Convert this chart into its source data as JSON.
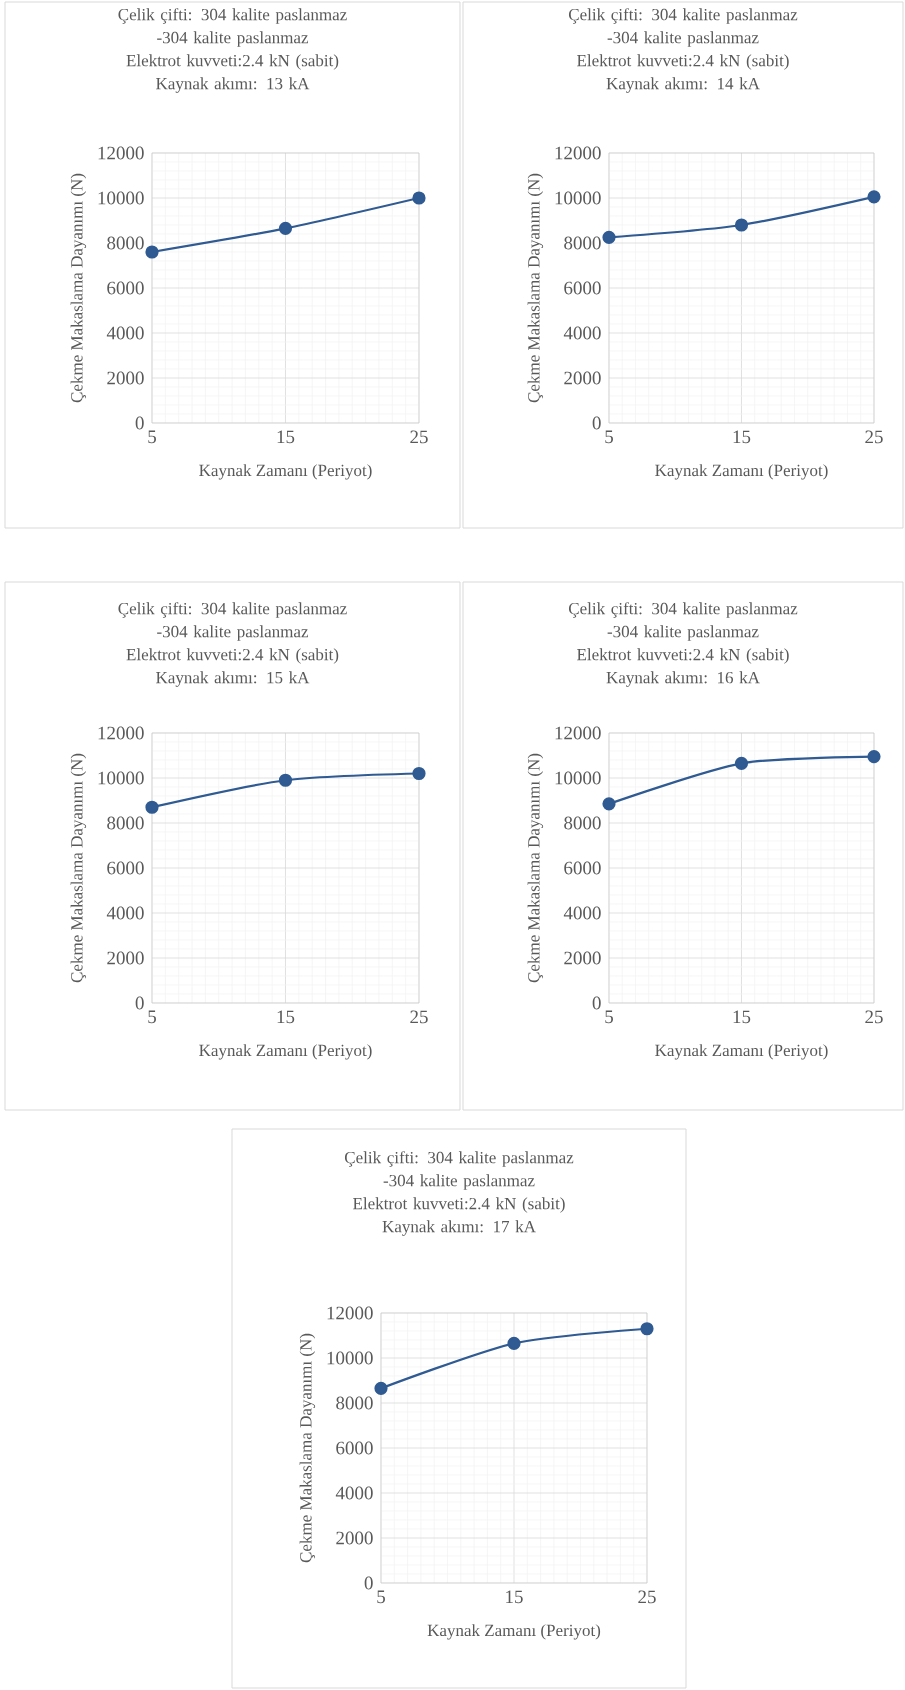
{
  "chart_data": [
    {
      "type": "line",
      "title": "Çelik çifti: 304 kalite paslanmaz -304 kalite paslanmaz",
      "subtitle": "Elektrot kuvveti:2.4 kN (sabit)",
      "annotations": [
        "Kaynak akımı: 13 kA"
      ],
      "xlabel": "Kaynak Zamanı (Periyot)",
      "ylabel": "Çekme Makaslama Dayanımı (N)",
      "x": [
        5,
        15,
        25
      ],
      "series": [
        {
          "color": "#2f5a92",
          "values": [
            7600,
            8650,
            10000
          ]
        }
      ],
      "xlim": [
        5,
        25
      ],
      "xticks": [
        5,
        15,
        25
      ],
      "ylim": [
        0,
        12000
      ],
      "yticks": [
        0,
        2000,
        4000,
        6000,
        8000,
        10000,
        12000
      ],
      "grid": true,
      "marker": "circle"
    },
    {
      "type": "line",
      "title": "Çelik çifti: 304 kalite paslanmaz -304 kalite paslanmaz",
      "subtitle": "Elektrot kuvveti:2.4 kN (sabit)",
      "annotations": [
        "Kaynak akımı: 14 kA"
      ],
      "xlabel": "Kaynak Zamanı (Periyot)",
      "ylabel": "Çekme Makaslama Dayanımı (N)",
      "x": [
        5,
        15,
        25
      ],
      "series": [
        {
          "color": "#2f5a92",
          "values": [
            8250,
            8800,
            10050
          ]
        }
      ],
      "xlim": [
        5,
        25
      ],
      "xticks": [
        5,
        15,
        25
      ],
      "ylim": [
        0,
        12000
      ],
      "yticks": [
        0,
        2000,
        4000,
        6000,
        8000,
        10000,
        12000
      ],
      "grid": true,
      "marker": "circle"
    },
    {
      "type": "line",
      "title": "Çelik çifti: 304 kalite paslanmaz -304 kalite paslanmaz",
      "subtitle": "Elektrot kuvveti:2.4 kN (sabit)",
      "annotations": [
        "Kaynak akımı: 15 kA"
      ],
      "xlabel": "Kaynak Zamanı (Periyot)",
      "ylabel": "Çekme Makaslama Dayanımı (N)",
      "x": [
        5,
        15,
        25
      ],
      "series": [
        {
          "color": "#2f5a92",
          "values": [
            8700,
            9900,
            10200
          ]
        }
      ],
      "xlim": [
        5,
        25
      ],
      "xticks": [
        5,
        15,
        25
      ],
      "ylim": [
        0,
        12000
      ],
      "yticks": [
        0,
        2000,
        4000,
        6000,
        8000,
        10000,
        12000
      ],
      "grid": true,
      "marker": "circle"
    },
    {
      "type": "line",
      "title": "Çelik çifti: 304 kalite paslanmaz -304 kalite paslanmaz",
      "subtitle": "Elektrot kuvveti:2.4 kN (sabit)",
      "annotations": [
        "Kaynak akımı: 16 kA"
      ],
      "xlabel": "Kaynak Zamanı (Periyot)",
      "ylabel": "Çekme Makaslama Dayanımı (N)",
      "x": [
        5,
        15,
        25
      ],
      "series": [
        {
          "color": "#2f5a92",
          "values": [
            8850,
            10650,
            10950
          ]
        }
      ],
      "xlim": [
        5,
        25
      ],
      "xticks": [
        5,
        15,
        25
      ],
      "ylim": [
        0,
        12000
      ],
      "yticks": [
        0,
        2000,
        4000,
        6000,
        8000,
        10000,
        12000
      ],
      "grid": true,
      "marker": "circle"
    },
    {
      "type": "line",
      "title": "Çelik çifti: 304 kalite paslanmaz -304 kalite paslanmaz",
      "subtitle": "Elektrot kuvveti:2.4 kN (sabit)",
      "annotations": [
        "Kaynak akımı: 17 kA"
      ],
      "xlabel": "Kaynak Zamanı (Periyot)",
      "ylabel": "Çekme Makaslama Dayanımı (N)",
      "x": [
        5,
        15,
        25
      ],
      "series": [
        {
          "color": "#2f5a92",
          "values": [
            8650,
            10650,
            11300
          ]
        }
      ],
      "xlim": [
        5,
        25
      ],
      "xticks": [
        5,
        15,
        25
      ],
      "ylim": [
        0,
        12000
      ],
      "yticks": [
        0,
        2000,
        4000,
        6000,
        8000,
        10000,
        12000
      ],
      "grid": true,
      "marker": "circle"
    }
  ]
}
